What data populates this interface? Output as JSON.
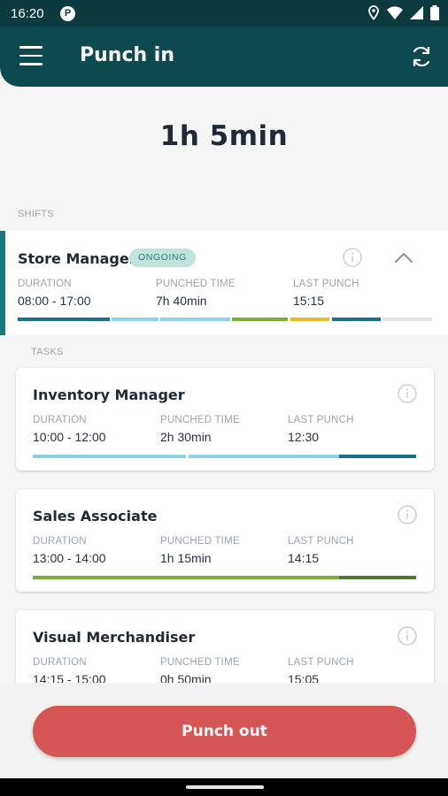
{
  "status": {
    "time": "16:20",
    "app_badge": "P"
  },
  "appbar": {
    "title": "Punch in"
  },
  "summary": {
    "total_time": "1h 5min"
  },
  "shifts_label": "SHIFTS",
  "shift": {
    "name": "Store Manager",
    "badge": "ONGOING",
    "labels": {
      "duration": "DURATION",
      "punched": "PUNCHED TIME",
      "last": "LAST PUNCH"
    },
    "duration": "08:00 - 17:00",
    "punched": "7h 40min",
    "last_punch": "15:15"
  },
  "tasks_label": "TASKS",
  "tasks": [
    {
      "name": "Inventory Manager",
      "duration": "10:00 - 12:00",
      "punched": "2h 30min",
      "last_punch": "12:30"
    },
    {
      "name": "Sales Associate",
      "duration": "13:00 - 14:00",
      "punched": "1h 15min",
      "last_punch": "14:15"
    },
    {
      "name": "Visual Merchandiser",
      "duration": "14:15 - 15:00",
      "punched": "0h 50min",
      "last_punch": "15:05"
    }
  ],
  "labels": {
    "duration": "DURATION",
    "punched": "PUNCHED TIME",
    "last": "LAST PUNCH"
  },
  "action": {
    "punch_out": "Punch out"
  },
  "colors": {
    "header": "#0d4a4e",
    "shift_accent": "#14787e",
    "button": "#d65555",
    "bar_teal": "#1d6f87",
    "bar_light": "#8fd0e3",
    "bar_green": "#79ae3a",
    "bar_yellow": "#e6b92a",
    "bar_darkgreen": "#4e7a2c"
  }
}
